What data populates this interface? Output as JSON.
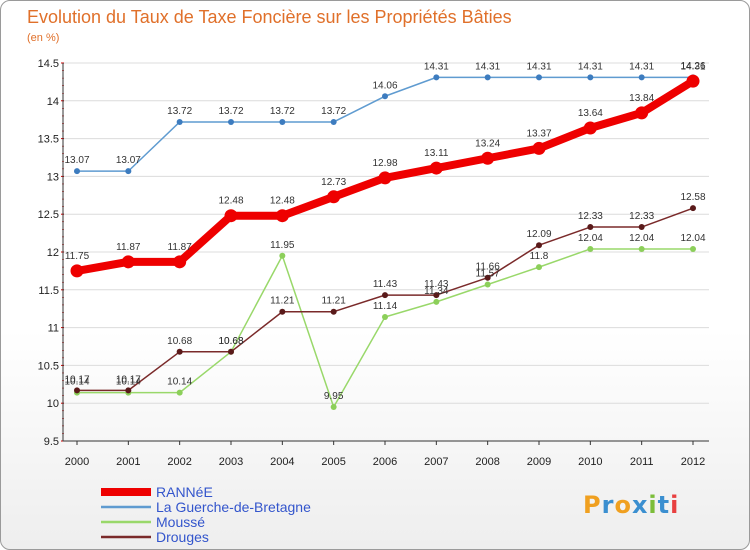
{
  "logo": {
    "text": "Proxiti",
    "colors": [
      "#f0a020",
      "#3b8fd0",
      "#f0a020",
      "#3b8fd0",
      "#7cbd3a",
      "#3b8fd0",
      "#e84040"
    ]
  },
  "chart_data": {
    "type": "line",
    "title": "Evolution du Taux de Taxe Foncière sur les Propriétés Bâties",
    "ylabel": "(en %)",
    "xlabel": "",
    "ylim": [
      9.5,
      14.5
    ],
    "y_ticks": [
      9.5,
      10,
      10.5,
      11,
      11.5,
      12,
      12.5,
      13,
      13.5,
      14,
      14.5
    ],
    "y_tick_labels": [
      "9.5",
      "10",
      "10.5",
      "11",
      "11.5",
      "12",
      "12.5",
      "13",
      "13.5",
      "14",
      "14.5"
    ],
    "categories": [
      "2000",
      "2001",
      "2002",
      "2003",
      "2004",
      "2005",
      "2006",
      "2007",
      "2008",
      "2009",
      "2010",
      "2011",
      "2012"
    ],
    "legend_position": "bottom-left",
    "series": [
      {
        "name": "La Guerche-de-Bretagne",
        "color": "#5f9bd0",
        "width": 1.5,
        "marker_r": 3,
        "values": [
          13.07,
          13.07,
          13.72,
          13.72,
          13.72,
          13.72,
          14.06,
          14.31,
          14.31,
          14.31,
          14.31,
          14.31,
          14.31
        ],
        "labels": [
          "13.07",
          "13.07",
          "13.72",
          "13.72",
          "13.72",
          "13.72",
          "14.06",
          "14.31",
          "14.31",
          "14.31",
          "14.31",
          "14.31",
          "14.31"
        ]
      },
      {
        "name": "Moussé",
        "color": "#99d86a",
        "width": 1.5,
        "marker_r": 3,
        "values": [
          10.14,
          10.14,
          10.14,
          10.68,
          11.95,
          9.95,
          11.14,
          11.34,
          11.57,
          11.8,
          12.04,
          12.04,
          12.04
        ],
        "labels": [
          "10.14",
          "10.14",
          "10.14",
          "10.68",
          "11.95",
          "9.95",
          "11.14",
          "11.34",
          "11.57",
          "11.8",
          "12.04",
          "12.04",
          "12.04"
        ]
      },
      {
        "name": "Drouges",
        "color": "#7a2a2a",
        "width": 1.5,
        "marker_r": 3,
        "values": [
          10.17,
          10.17,
          10.68,
          10.68,
          11.21,
          11.21,
          11.43,
          11.43,
          11.66,
          12.09,
          12.33,
          12.33,
          12.58
        ],
        "labels": [
          "10.17",
          "10.17",
          "10.68",
          "10.68",
          "11.21",
          "11.21",
          "11.43",
          "11.43",
          "11.66",
          "12.09",
          "12.33",
          "12.33",
          "12.58"
        ]
      },
      {
        "name": "RANNéE",
        "color": "#ee0000",
        "width": 8,
        "marker_r": 6.5,
        "values": [
          11.75,
          11.87,
          11.87,
          12.48,
          12.48,
          12.73,
          12.98,
          13.11,
          13.24,
          13.37,
          13.64,
          13.84,
          14.26
        ],
        "labels": [
          "11.75",
          "11.87",
          "11.87",
          "12.48",
          "12.48",
          "12.73",
          "12.98",
          "13.11",
          "13.24",
          "13.37",
          "13.64",
          "13.84",
          "14.26"
        ]
      }
    ],
    "legend_order": [
      3,
      0,
      1,
      2
    ]
  }
}
